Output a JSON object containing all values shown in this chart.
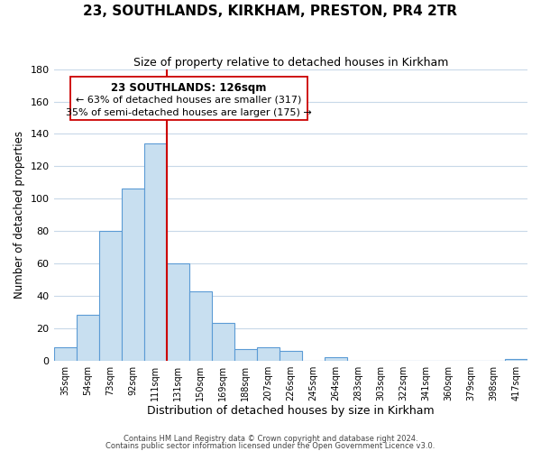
{
  "title": "23, SOUTHLANDS, KIRKHAM, PRESTON, PR4 2TR",
  "subtitle": "Size of property relative to detached houses in Kirkham",
  "xlabel": "Distribution of detached houses by size in Kirkham",
  "ylabel": "Number of detached properties",
  "bar_labels": [
    "35sqm",
    "54sqm",
    "73sqm",
    "92sqm",
    "111sqm",
    "131sqm",
    "150sqm",
    "169sqm",
    "188sqm",
    "207sqm",
    "226sqm",
    "245sqm",
    "264sqm",
    "283sqm",
    "303sqm",
    "322sqm",
    "341sqm",
    "360sqm",
    "379sqm",
    "398sqm",
    "417sqm"
  ],
  "bar_heights": [
    8,
    28,
    80,
    106,
    134,
    60,
    43,
    23,
    7,
    8,
    6,
    0,
    2,
    0,
    0,
    0,
    0,
    0,
    0,
    0,
    1
  ],
  "bar_color": "#c8dff0",
  "bar_edge_color": "#5b9bd5",
  "ylim": [
    0,
    180
  ],
  "yticks": [
    0,
    20,
    40,
    60,
    80,
    100,
    120,
    140,
    160,
    180
  ],
  "marker_color": "#cc0000",
  "annotation_line1": "23 SOUTHLANDS: 126sqm",
  "annotation_line2": "← 63% of detached houses are smaller (317)",
  "annotation_line3": "35% of semi-detached houses are larger (175) →",
  "footer1": "Contains HM Land Registry data © Crown copyright and database right 2024.",
  "footer2": "Contains public sector information licensed under the Open Government Licence v3.0.",
  "background_color": "#ffffff",
  "grid_color": "#c8d8e8"
}
